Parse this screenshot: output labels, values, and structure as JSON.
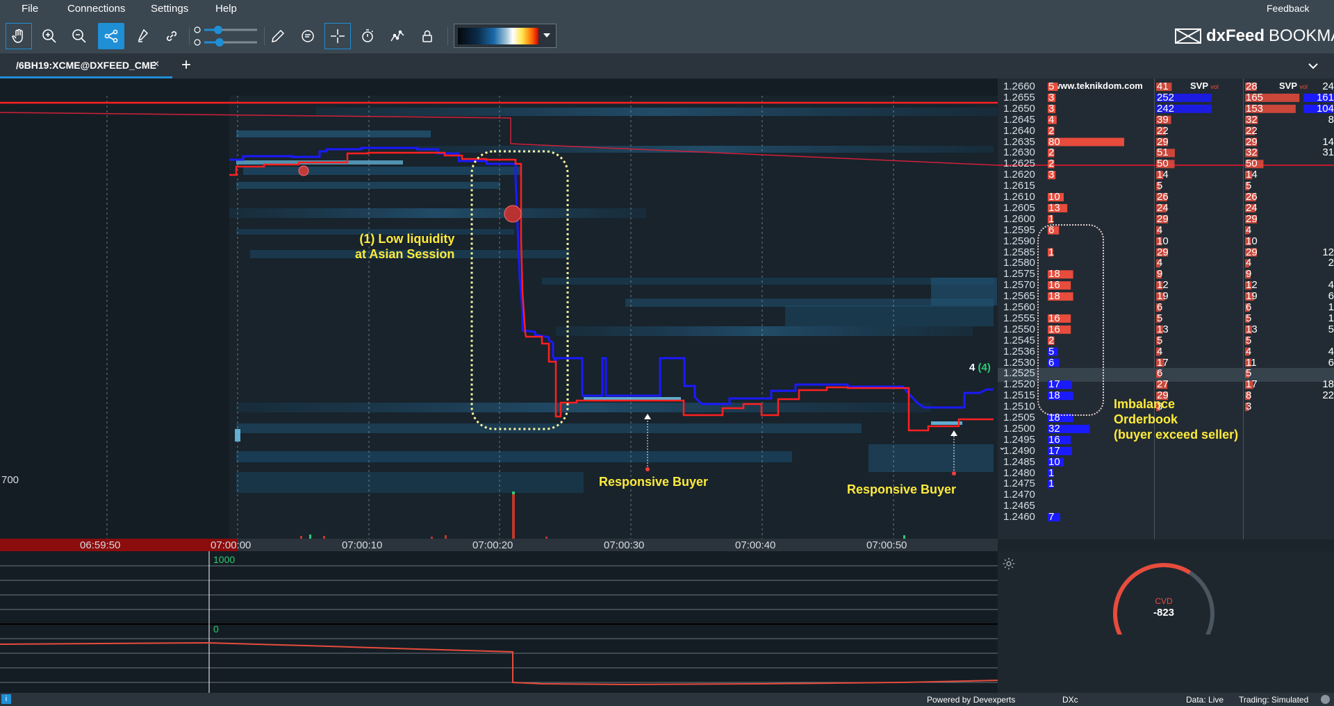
{
  "menu": {
    "file": "File",
    "connections": "Connections",
    "settings": "Settings",
    "help": "Help",
    "feedback": "Feedback"
  },
  "brand": {
    "name_bold": "dxFeed",
    "name_light": "BOOKMAP"
  },
  "tab": {
    "label": "/6BH19:XCME@DXFEED_CME",
    "close": "×",
    "add": "+"
  },
  "ladder": {
    "header_site": "www.teknikdom.com",
    "header_svp1": "SVP",
    "header_svp2": "SVP",
    "svp_badge": "vol",
    "current_size": "4",
    "current_size_paren": "(4)",
    "prices": [
      "1.2660",
      "1.2655",
      "1.2650",
      "1.2645",
      "1.2640",
      "1.2635",
      "1.2630",
      "1.2625",
      "1.2620",
      "1.2615",
      "1.2610",
      "1.2605",
      "1.2600",
      "1.2595",
      "1.2590",
      "1.2585",
      "1.2580",
      "1.2575",
      "1.2570",
      "1.2565",
      "1.2560",
      "1.2555",
      "1.2550",
      "1.2545",
      "1.2536",
      "1.2530",
      "1.2525",
      "1.2520",
      "1.2515",
      "1.2510",
      "1.2505",
      "1.2500",
      "1.2495",
      "1.2490",
      "1.2485",
      "1.2480",
      "1.2475",
      "1.2470",
      "1.2465",
      "1.2460"
    ],
    "book_sizes": [
      "5",
      "3",
      "3",
      "4",
      "2",
      "80",
      "2",
      "2",
      "3",
      "",
      "10",
      "13",
      "1",
      "6",
      "",
      "1",
      "",
      "18",
      "16",
      "18",
      "",
      "16",
      "16",
      "2",
      "5",
      "6",
      "",
      "17",
      "18",
      "",
      "18",
      "32",
      "16",
      "17",
      "10",
      "1",
      "1",
      "",
      "",
      "7"
    ],
    "svp1": [
      "41",
      "252",
      "242",
      "39",
      "22",
      "29",
      "51",
      "50",
      "14",
      "5",
      "26",
      "24",
      "29",
      "4",
      "10",
      "29",
      "4",
      "9",
      "12",
      "19",
      "6",
      "5",
      "13",
      "5",
      "4",
      "17",
      "6",
      "27",
      "29",
      "3",
      "",
      "",
      "",
      "",
      "",
      "",
      "",
      "",
      "",
      ""
    ],
    "svp2": [
      "28",
      "165",
      "153",
      "32",
      "22",
      "29",
      "32",
      "50",
      "14",
      "5",
      "26",
      "24",
      "29",
      "4",
      "10",
      "29",
      "4",
      "9",
      "12",
      "19",
      "6",
      "5",
      "13",
      "5",
      "4",
      "11",
      "5",
      "17",
      "8",
      "3",
      "",
      "",
      "",
      "",
      "",
      "",
      "",
      "",
      "",
      ""
    ],
    "svp3": [
      "24",
      "161",
      "104",
      "8",
      "",
      "14",
      "31",
      "",
      "",
      "",
      "",
      "",
      "",
      "",
      "",
      "12",
      "2",
      "",
      "4",
      "6",
      "1",
      "1",
      "5",
      "",
      "4",
      "6",
      "",
      "18",
      "22",
      "",
      "",
      "",
      "",
      "",
      "",
      "",
      "",
      "",
      "",
      ""
    ]
  },
  "heatmap": {
    "left_price_label": "700"
  },
  "time_axis": [
    "06:59:50",
    "07:00:00",
    "07:00:10",
    "07:00:20",
    "07:00:30",
    "07:00:40",
    "07:00:50"
  ],
  "annotations": {
    "low_liquidity_line1": "(1) Low liquidity",
    "low_liquidity_line2": "at Asian Session",
    "responsive_buyer_1": "Responsive Buyer",
    "responsive_buyer_2": "Responsive Buyer",
    "imbalance_line1": "Imbalance",
    "imbalance_line2": "Orderbook",
    "imbalance_line3": "(buyer exceed seller)"
  },
  "lower": {
    "label_top": "1000",
    "label_zero": "0"
  },
  "cvd": {
    "label": "CVD",
    "value": "-823",
    "fraction": 0.62
  },
  "status": {
    "powered": "Powered by Devexperts",
    "dxc": "DXc",
    "data": "Data: Live",
    "trading": "Trading: Simulated"
  },
  "colors": {
    "bid": "#1a1aff",
    "ask": "#ff3030",
    "accent": "#1f8fd6",
    "anno": "#ffeb3b"
  }
}
